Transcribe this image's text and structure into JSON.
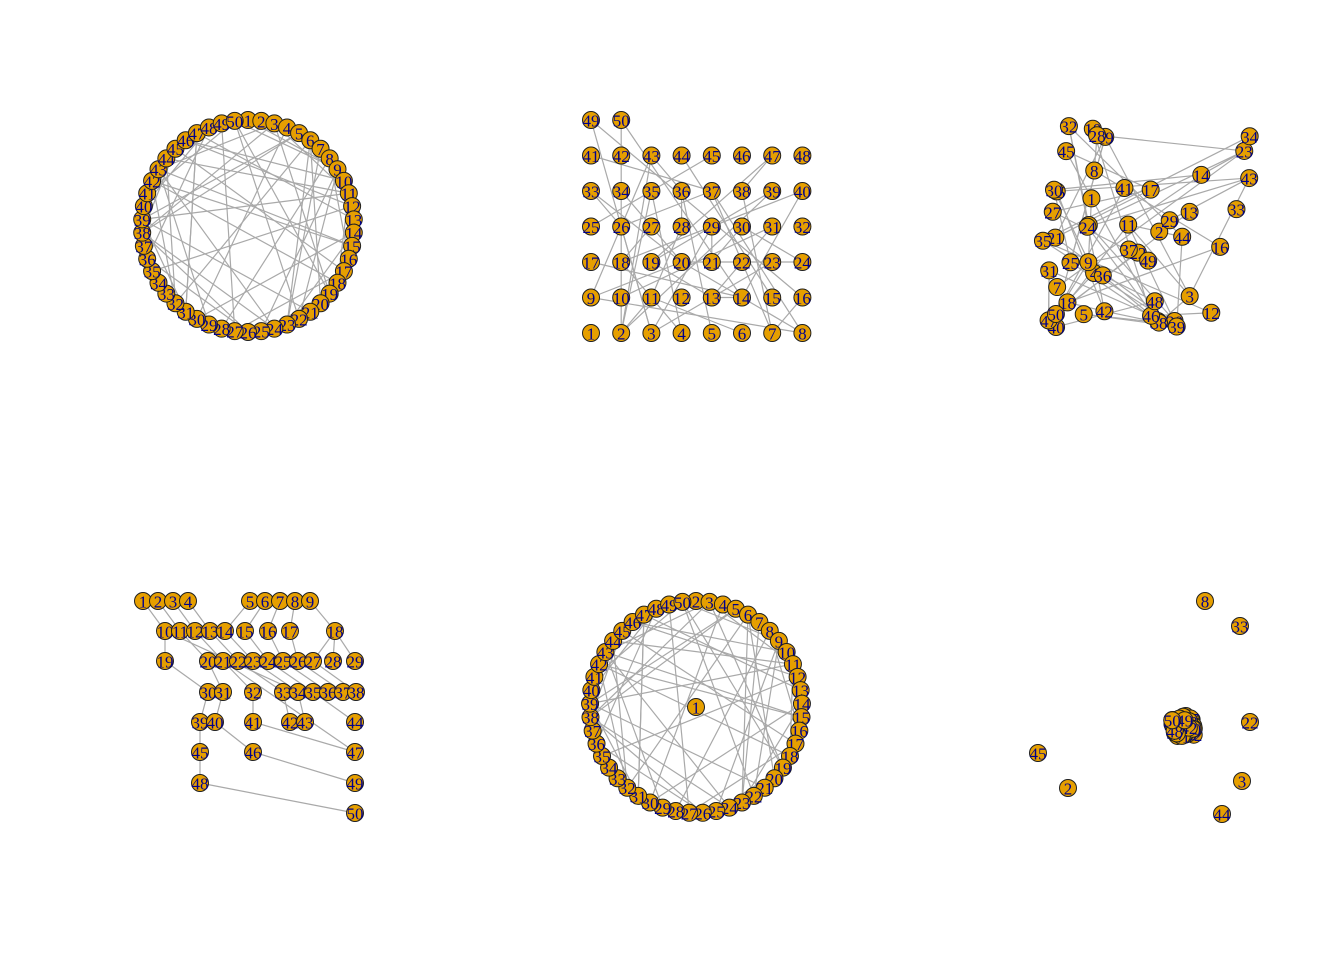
{
  "style": {
    "background": "#ffffff",
    "edge_color": "#a9a9a9",
    "node_fill": "#e69f00",
    "node_border": "#1f1f1f",
    "label_color": "#00008b"
  },
  "panels": [
    {
      "id": "panel-circle-layout",
      "layout": "circle",
      "node_count": 50
    },
    {
      "id": "panel-grid-layout",
      "layout": "grid",
      "node_count": 50
    },
    {
      "id": "panel-random-layout",
      "layout": "random",
      "node_count": 50
    },
    {
      "id": "panel-tree-layout",
      "layout": "tree",
      "node_count": 50
    },
    {
      "id": "panel-star-layout",
      "layout": "star",
      "node_count": 50,
      "center_label": "1"
    },
    {
      "id": "panel-force-layout",
      "layout": "force",
      "node_count": 50,
      "visible_outlier_labels": [
        "8",
        "33",
        "22",
        "45",
        "2",
        "3",
        "44"
      ]
    }
  ],
  "node_labels": [
    "1",
    "2",
    "3",
    "4",
    "5",
    "6",
    "7",
    "8",
    "9",
    "10",
    "11",
    "12",
    "13",
    "14",
    "15",
    "16",
    "17",
    "18",
    "19",
    "20",
    "21",
    "22",
    "23",
    "24",
    "25",
    "26",
    "27",
    "28",
    "29",
    "30",
    "31",
    "32",
    "33",
    "34",
    "35",
    "36",
    "37",
    "38",
    "39",
    "40",
    "41",
    "42",
    "43",
    "44",
    "45",
    "46",
    "47",
    "48",
    "49",
    "50"
  ]
}
